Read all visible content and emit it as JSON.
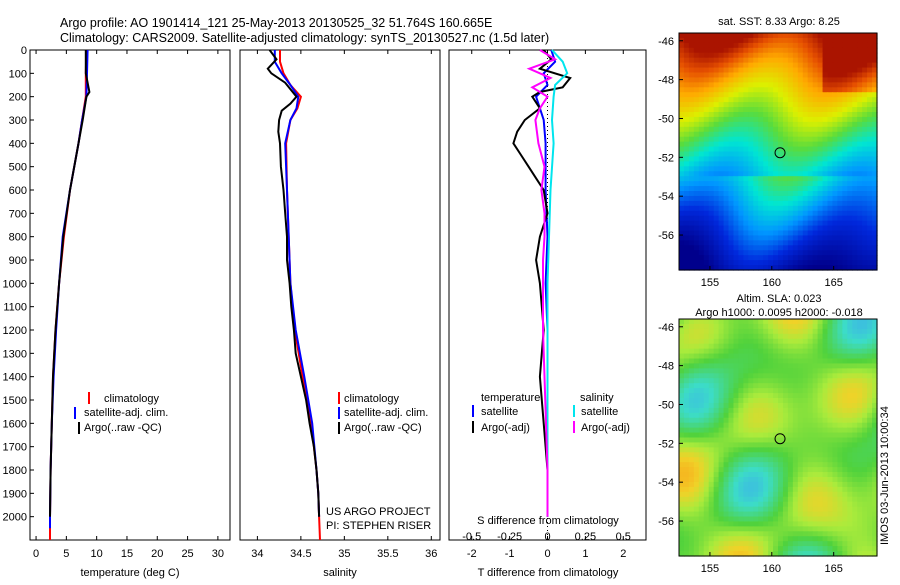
{
  "title": {
    "line1": "Argo profile: AO 1901414_121 25-May-2013 20130525_32 51.764S 160.665E",
    "line2": "Climatology: CARS2009. Satellite-adjusted climatology: synTS_20130527.nc (1.5d later)"
  },
  "depth_ticks": [
    "0",
    "100",
    "200",
    "300",
    "400",
    "500",
    "600",
    "700",
    "800",
    "900",
    "1000",
    "1100",
    "1200",
    "1300",
    "1400",
    "1500",
    "1600",
    "1700",
    "1800",
    "1900",
    "2000"
  ],
  "colors": {
    "red": "#ff0000",
    "blue": "#0000ff",
    "black": "#000000",
    "cyan": "#00e5ee",
    "magenta": "#ff00ff"
  },
  "chart_data": [
    {
      "type": "line",
      "xlabel": "temperature (deg C)",
      "xticks": [
        "0",
        "5",
        "10",
        "15",
        "20",
        "25",
        "30"
      ],
      "xlim": [
        -1,
        32
      ],
      "ylim": [
        2100,
        0
      ],
      "legend": {
        "placement": "lower-right",
        "entries": [
          "climatology",
          "satellite-adj. clim.",
          "Argo(..raw -QC)"
        ]
      },
      "series": [
        {
          "name": "climatology",
          "color": "red",
          "depth": [
            0,
            100,
            200,
            300,
            400,
            600,
            800,
            1000,
            1200,
            1400,
            1600,
            1800,
            2000,
            2100
          ],
          "values": [
            8.3,
            8.2,
            8.2,
            7.6,
            7.0,
            5.6,
            4.6,
            3.8,
            3.2,
            2.8,
            2.6,
            2.4,
            2.3,
            2.3
          ]
        },
        {
          "name": "satellite-adj. clim.",
          "color": "blue",
          "depth": [
            0,
            100,
            200,
            300,
            400,
            600,
            800,
            1000,
            1200,
            1400,
            1600,
            1800,
            2000,
            2050
          ],
          "values": [
            8.5,
            8.4,
            8.3,
            7.6,
            7.0,
            5.6,
            4.4,
            3.8,
            3.3,
            2.9,
            2.6,
            2.4,
            2.3,
            2.3
          ]
        },
        {
          "name": "Argo(..raw -QC)",
          "color": "black",
          "depth": [
            0,
            100,
            180,
            200,
            300,
            400,
            600,
            800,
            1000,
            1200,
            1400,
            1600,
            1800,
            2000
          ],
          "values": [
            8.2,
            8.2,
            8.8,
            8.3,
            7.7,
            7.0,
            5.6,
            4.5,
            3.8,
            3.2,
            2.8,
            2.6,
            2.4,
            2.3
          ]
        }
      ]
    },
    {
      "type": "line",
      "xlabel": "salinity",
      "xticks": [
        "34",
        "34.5",
        "35",
        "35.5",
        "36"
      ],
      "xlim": [
        33.8,
        36.1
      ],
      "ylim": [
        2100,
        0
      ],
      "legend": {
        "placement": "lower-right",
        "entries": [
          "climatology",
          "satellite-adj. clim.",
          "Argo(..raw -QC)"
        ]
      },
      "annotations": [
        "US ARGO PROJECT",
        "PI: STEPHEN RISER"
      ],
      "series": [
        {
          "name": "climatology",
          "color": "red",
          "depth": [
            0,
            50,
            100,
            150,
            200,
            250,
            300,
            400,
            600,
            800,
            1000,
            1200,
            1400,
            1600,
            1800,
            1900,
            2000,
            2100
          ],
          "values": [
            34.26,
            34.26,
            34.3,
            34.38,
            34.5,
            34.46,
            34.38,
            34.33,
            34.34,
            34.36,
            34.38,
            34.43,
            34.52,
            34.62,
            34.68,
            34.7,
            34.71,
            34.72
          ]
        },
        {
          "name": "satellite-adj. clim.",
          "color": "blue",
          "depth": [
            0,
            50,
            100,
            150,
            200,
            250,
            300,
            400,
            600,
            800,
            1000,
            1200,
            1400,
            1600,
            1800,
            1900,
            2000
          ],
          "values": [
            34.2,
            34.2,
            34.28,
            34.38,
            34.47,
            34.45,
            34.38,
            34.32,
            34.34,
            34.36,
            34.38,
            34.44,
            34.54,
            34.63,
            34.68,
            34.7,
            34.71
          ]
        },
        {
          "name": "Argo(..raw -QC)",
          "color": "black",
          "depth": [
            0,
            40,
            80,
            100,
            140,
            200,
            230,
            260,
            300,
            350,
            400,
            500,
            600,
            700,
            800,
            900,
            1000,
            1100,
            1200,
            1300,
            1400,
            1500,
            1600,
            1700,
            1800,
            1900,
            2000
          ],
          "values": [
            34.14,
            34.22,
            34.12,
            34.16,
            34.32,
            34.45,
            34.38,
            34.28,
            34.25,
            34.24,
            34.26,
            34.27,
            34.3,
            34.32,
            34.34,
            34.34,
            34.37,
            34.39,
            34.42,
            34.44,
            34.5,
            34.56,
            34.6,
            34.65,
            34.68,
            34.7,
            34.71
          ]
        }
      ]
    },
    {
      "type": "line",
      "xlabel": "T difference from climatology",
      "xticks": [
        "-2",
        "-1",
        "0",
        "1",
        "2"
      ],
      "x2label": "S difference from climatology",
      "x2ticks": [
        "-0.5",
        "-0.25",
        "0",
        "0.25",
        "0.5"
      ],
      "xlim": [
        -2.6,
        2.6
      ],
      "ylim": [
        2100,
        0
      ],
      "legend": {
        "placement": "lower-center",
        "temperature_header": "temperature",
        "salinity_header": "salinity",
        "entries": [
          "satellite",
          "Argo(-adj)",
          "satellite",
          "Argo(-adj)"
        ]
      },
      "series": [
        {
          "name": "temperature satellite",
          "color": "blue",
          "depth": [
            0,
            50,
            100,
            150,
            200,
            300,
            400,
            600,
            800,
            1000,
            1200,
            1400,
            1600,
            1800,
            2000
          ],
          "values": [
            0.1,
            0.2,
            -0.1,
            0.0,
            -0.3,
            -0.1,
            -0.05,
            -0.05,
            0.0,
            -0.05,
            0.0,
            0.0,
            0.0,
            0.0,
            0.0
          ]
        },
        {
          "name": "temperature Argo(-adj)",
          "color": "black",
          "depth": [
            0,
            40,
            80,
            120,
            160,
            180,
            200,
            250,
            300,
            350,
            400,
            450,
            500,
            550,
            600,
            700,
            800,
            900,
            1000,
            1200,
            1400,
            1600,
            1800,
            2000
          ],
          "values": [
            -0.1,
            0.1,
            -0.2,
            0.6,
            0.4,
            -0.2,
            -0.4,
            -0.2,
            -0.6,
            -0.8,
            -0.9,
            -0.7,
            -0.5,
            -0.3,
            -0.1,
            0.0,
            -0.2,
            -0.3,
            -0.2,
            -0.1,
            -0.2,
            -0.1,
            0.0,
            0.0
          ]
        },
        {
          "name": "salinity satellite",
          "color": "cyan",
          "depth": [
            0,
            50,
            100,
            150,
            200,
            300,
            400,
            600,
            800,
            1000,
            1200,
            1400,
            1600,
            1800,
            2000
          ],
          "values": [
            0.03,
            0.1,
            0.13,
            0.05,
            0.04,
            0.03,
            0.04,
            0.02,
            0.01,
            0.0,
            0.0,
            0.0,
            0.0,
            0.0,
            0.0
          ]
        },
        {
          "name": "salinity Argo(-adj)",
          "color": "magenta",
          "depth": [
            0,
            40,
            80,
            120,
            160,
            200,
            250,
            300,
            400,
            500,
            600,
            700,
            800,
            900,
            1000,
            1200,
            1400,
            1600,
            1800,
            2000
          ],
          "values": [
            -0.05,
            0.05,
            -0.12,
            0.02,
            -0.1,
            0.0,
            -0.05,
            -0.08,
            -0.06,
            -0.02,
            -0.04,
            -0.02,
            -0.02,
            -0.03,
            -0.03,
            -0.03,
            -0.02,
            -0.01,
            0.0,
            0.0
          ]
        }
      ]
    },
    {
      "type": "heatmap",
      "title": "sat. SST: 8.33 Argo: 8.25",
      "xticks": [
        "155",
        "160",
        "165"
      ],
      "yticks": [
        "-46",
        "-48",
        "-50",
        "-52",
        "-54",
        "-56"
      ],
      "xlim": [
        152.5,
        168.5
      ],
      "ylim": [
        -57.8,
        -45.6
      ],
      "marker": {
        "lon": 160.665,
        "lat": -51.764
      }
    },
    {
      "type": "heatmap",
      "title": "Altim. SLA: 0.023",
      "subtitle": "Argo h1000: 0.0095 h2000: -0.018",
      "xticks": [
        "155",
        "160",
        "165"
      ],
      "yticks": [
        "-46",
        "-48",
        "-50",
        "-52",
        "-54",
        "-56"
      ],
      "xlim": [
        152.5,
        168.5
      ],
      "ylim": [
        -57.8,
        -45.6
      ],
      "marker": {
        "lon": 160.665,
        "lat": -51.764
      }
    }
  ],
  "stamp": "IMOS 03-Jun-2013 10:00:34"
}
